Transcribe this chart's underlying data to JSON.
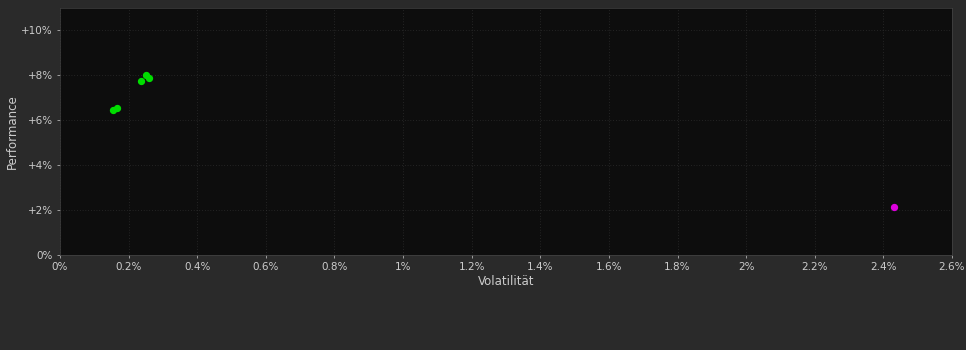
{
  "background_color": "#2a2a2a",
  "plot_bg_color": "#0d0d0d",
  "grid_color": "#3a3a3a",
  "xlabel": "Volatilität",
  "ylabel": "Performance",
  "xlim": [
    0,
    0.026
  ],
  "ylim": [
    0,
    0.11
  ],
  "xticks": [
    0.0,
    0.002,
    0.004,
    0.006,
    0.008,
    0.01,
    0.012,
    0.014,
    0.016,
    0.018,
    0.02,
    0.022,
    0.024,
    0.026
  ],
  "xtick_labels": [
    "0%",
    "0.2%",
    "0.4%",
    "0.6%",
    "0.8%",
    "1%",
    "1.2%",
    "1.4%",
    "1.6%",
    "1.8%",
    "2%",
    "2.2%",
    "2.4%",
    "2.6%"
  ],
  "yticks": [
    0.0,
    0.02,
    0.04,
    0.06,
    0.08,
    0.1
  ],
  "ytick_labels": [
    "0%",
    "+2%",
    "+4%",
    "+6%",
    "+8%",
    "+10%"
  ],
  "green_points": [
    [
      0.00155,
      0.0645
    ],
    [
      0.00165,
      0.0655
    ],
    [
      0.00235,
      0.0775
    ],
    [
      0.0025,
      0.08
    ],
    [
      0.0026,
      0.079
    ]
  ],
  "magenta_points": [
    [
      0.0243,
      0.0215
    ]
  ],
  "point_size": 18,
  "green_color": "#00dd00",
  "magenta_color": "#dd00dd",
  "tick_color": "#cccccc",
  "tick_fontsize": 7.5,
  "label_fontsize": 8.5,
  "label_color": "#cccccc"
}
